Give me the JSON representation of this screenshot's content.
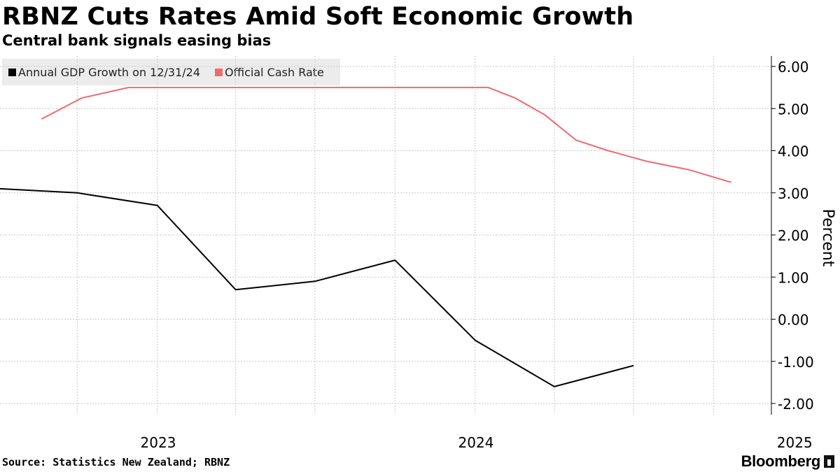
{
  "chart_data": {
    "type": "line",
    "title": "RBNZ Cuts Rates Amid Soft Economic Growth",
    "subtitle": "Central bank signals easing bias",
    "ylabel": "Percent",
    "ylim": [
      -2.0,
      6.0
    ],
    "yticks": [
      "6.00",
      "5.00",
      "4.00",
      "3.00",
      "2.00",
      "1.00",
      "0.00",
      "-1.00",
      "-2.00"
    ],
    "xticks": [
      "2023",
      "2024",
      "2025"
    ],
    "grid": true,
    "legend_position": "top-left",
    "series": [
      {
        "name": "Annual GDP Growth on 12/31/24",
        "color": "#000000",
        "points": [
          [
            "2022-06-30",
            3.1
          ],
          [
            "2022-09-30",
            3.0
          ],
          [
            "2022-12-31",
            2.7
          ],
          [
            "2023-03-31",
            0.7
          ],
          [
            "2023-06-30",
            0.9
          ],
          [
            "2023-09-30",
            1.4
          ],
          [
            "2023-12-31",
            -0.5
          ],
          [
            "2024-03-31",
            -1.6
          ],
          [
            "2024-06-30",
            -1.1
          ]
        ]
      },
      {
        "name": "Official Cash Rate",
        "color": "#f0696e",
        "points": [
          [
            "2022-08-20",
            4.75
          ],
          [
            "2022-10-05",
            5.25
          ],
          [
            "2022-11-28",
            5.5
          ],
          [
            "2024-01-15",
            5.5
          ],
          [
            "2024-02-15",
            5.25
          ],
          [
            "2024-03-20",
            4.85
          ],
          [
            "2024-04-25",
            4.25
          ],
          [
            "2024-06-01",
            4.0
          ],
          [
            "2024-07-15",
            3.75
          ],
          [
            "2024-09-01",
            3.55
          ],
          [
            "2024-10-20",
            3.25
          ]
        ]
      }
    ]
  },
  "source": "Source: Statistics New Zealand; RBNZ",
  "brand": "Bloomberg"
}
